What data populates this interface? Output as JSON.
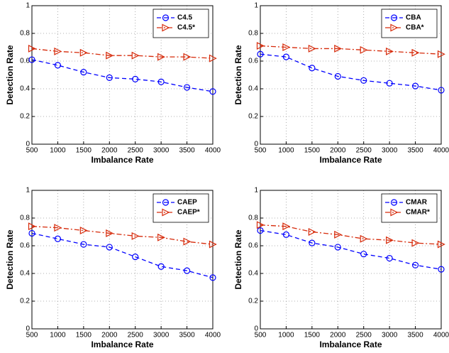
{
  "chart_data": [
    {
      "type": "line",
      "xlabel": "Imbalance Rate",
      "ylabel": "Detection Rate",
      "x": [
        500,
        1000,
        1500,
        2000,
        2500,
        3000,
        3500,
        4000
      ],
      "xlim": [
        500,
        4000
      ],
      "xticks": [
        500,
        1000,
        1500,
        2000,
        2500,
        3000,
        3500,
        4000
      ],
      "ylim": [
        0,
        1
      ],
      "yticks": [
        0,
        0.2,
        0.4,
        0.6,
        0.8,
        1
      ],
      "grid": true,
      "legend": "top-right",
      "series": [
        {
          "name": "C4.5",
          "color": "#0000ff",
          "style": "dashed",
          "marker": "circle",
          "values": [
            0.61,
            0.57,
            0.52,
            0.48,
            0.47,
            0.45,
            0.41,
            0.38
          ]
        },
        {
          "name": "C4.5*",
          "color": "#d62a0a",
          "style": "dashdot",
          "marker": "triangle-right",
          "values": [
            0.69,
            0.67,
            0.66,
            0.64,
            0.64,
            0.63,
            0.63,
            0.62
          ]
        }
      ]
    },
    {
      "type": "line",
      "xlabel": "Imbalance Rate",
      "ylabel": "Detection Rate",
      "x": [
        500,
        1000,
        1500,
        2000,
        2500,
        3000,
        3500,
        4000
      ],
      "xlim": [
        500,
        4000
      ],
      "xticks": [
        500,
        1000,
        1500,
        2000,
        2500,
        3000,
        3500,
        4000
      ],
      "ylim": [
        0,
        1
      ],
      "yticks": [
        0,
        0.2,
        0.4,
        0.6,
        0.8,
        1
      ],
      "grid": true,
      "legend": "top-right",
      "series": [
        {
          "name": "CBA",
          "color": "#0000ff",
          "style": "dashed",
          "marker": "circle",
          "values": [
            0.65,
            0.63,
            0.55,
            0.49,
            0.46,
            0.44,
            0.42,
            0.39
          ]
        },
        {
          "name": "CBA*",
          "color": "#d62a0a",
          "style": "dashdot",
          "marker": "triangle-right",
          "values": [
            0.71,
            0.7,
            0.69,
            0.69,
            0.68,
            0.67,
            0.66,
            0.65
          ]
        }
      ]
    },
    {
      "type": "line",
      "xlabel": "Imbalance Rate",
      "ylabel": "Detection Rate",
      "x": [
        500,
        1000,
        1500,
        2000,
        2500,
        3000,
        3500,
        4000
      ],
      "xlim": [
        500,
        4000
      ],
      "xticks": [
        500,
        1000,
        1500,
        2000,
        2500,
        3000,
        3500,
        4000
      ],
      "ylim": [
        0,
        1
      ],
      "yticks": [
        0,
        0.2,
        0.4,
        0.6,
        0.8,
        1
      ],
      "grid": true,
      "legend": "top-right",
      "series": [
        {
          "name": "CAEP",
          "color": "#0000ff",
          "style": "dashed",
          "marker": "circle",
          "values": [
            0.69,
            0.65,
            0.61,
            0.59,
            0.52,
            0.45,
            0.42,
            0.37
          ]
        },
        {
          "name": "CAEP*",
          "color": "#d62a0a",
          "style": "dashdot",
          "marker": "triangle-right",
          "values": [
            0.74,
            0.73,
            0.71,
            0.69,
            0.67,
            0.66,
            0.63,
            0.61
          ]
        }
      ]
    },
    {
      "type": "line",
      "xlabel": "Imbalance Rate",
      "ylabel": "Detection Rate",
      "x": [
        500,
        1000,
        1500,
        2000,
        2500,
        3000,
        3500,
        4000
      ],
      "xlim": [
        500,
        4000
      ],
      "xticks": [
        500,
        1000,
        1500,
        2000,
        2500,
        3000,
        3500,
        4000
      ],
      "ylim": [
        0,
        1
      ],
      "yticks": [
        0,
        0.2,
        0.4,
        0.6,
        0.8,
        1
      ],
      "grid": true,
      "legend": "top-right",
      "series": [
        {
          "name": "CMAR",
          "color": "#0000ff",
          "style": "dashed",
          "marker": "circle",
          "values": [
            0.71,
            0.68,
            0.62,
            0.59,
            0.54,
            0.51,
            0.46,
            0.43
          ]
        },
        {
          "name": "CMAR*",
          "color": "#d62a0a",
          "style": "dashdot",
          "marker": "triangle-right",
          "values": [
            0.75,
            0.74,
            0.7,
            0.68,
            0.65,
            0.64,
            0.62,
            0.61
          ]
        }
      ]
    }
  ]
}
